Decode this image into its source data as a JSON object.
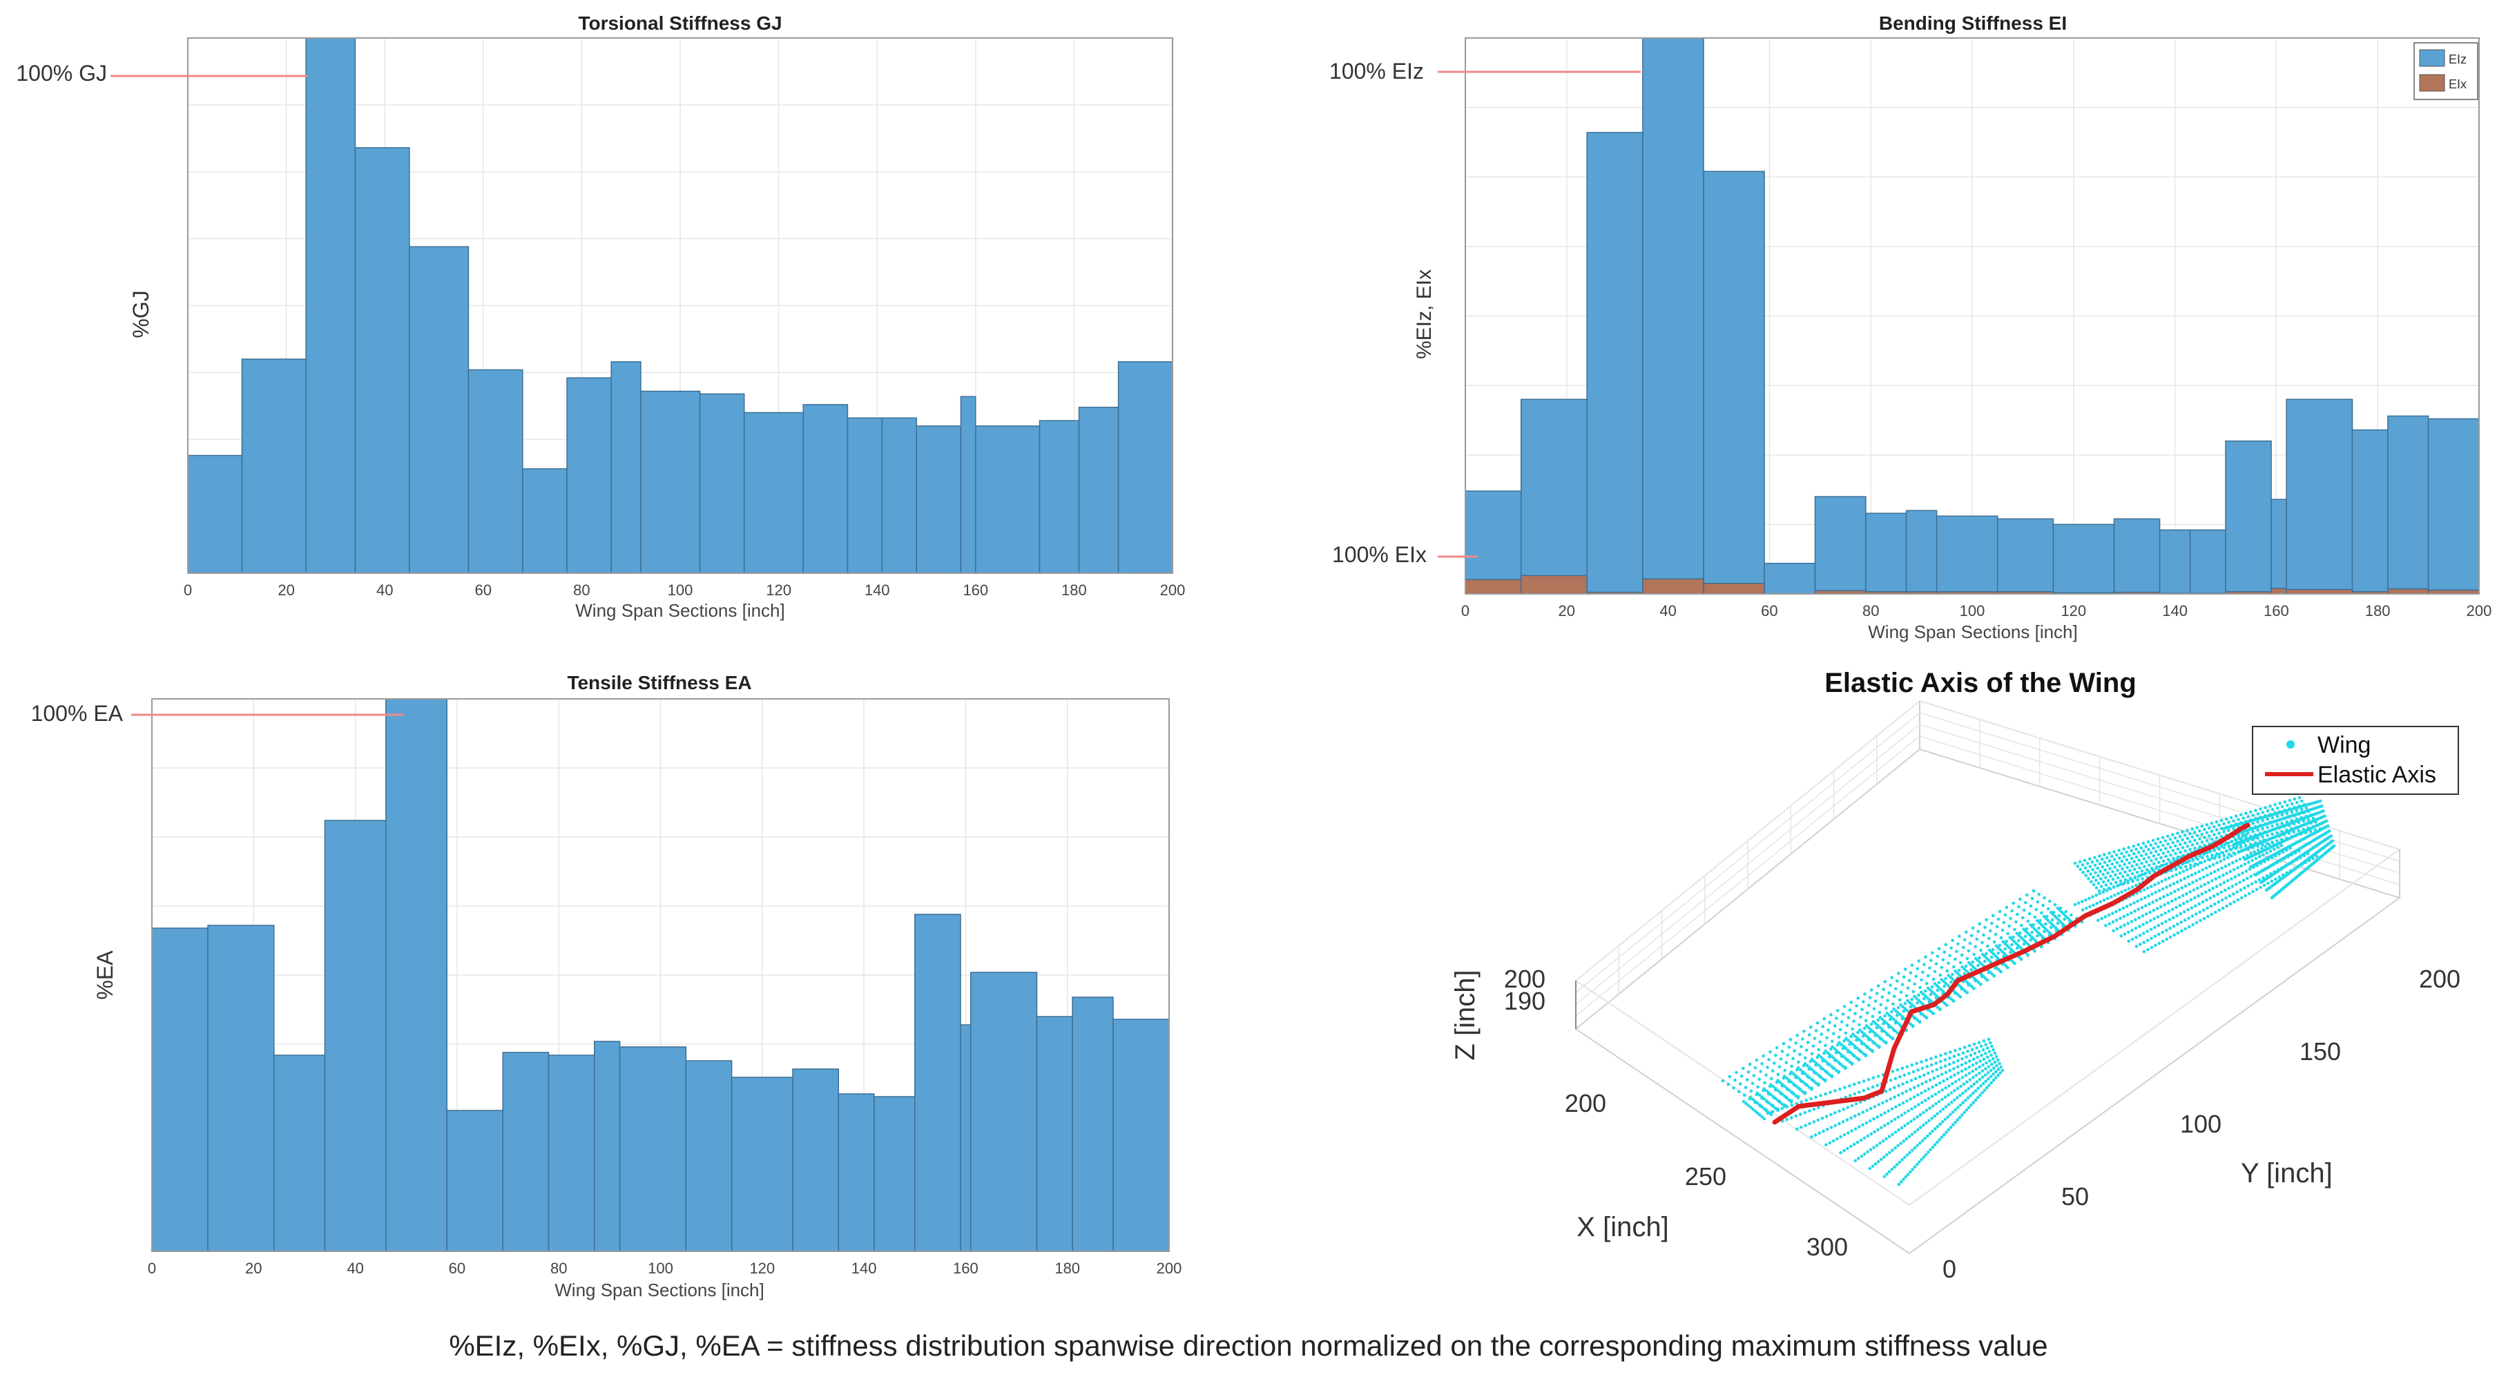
{
  "chart_data": [
    {
      "type": "bar",
      "title": "Torsional Stiffness GJ",
      "xlabel": "Wing Span Sections [inch]",
      "ylabel": "%GJ",
      "ref_label": "100% GJ",
      "xlim": [
        0,
        200
      ],
      "xticks": [
        "0",
        "20",
        "40",
        "60",
        "80",
        "100",
        "120",
        "140",
        "160",
        "180",
        "200"
      ],
      "ylim": [
        0,
        100
      ],
      "grid": true,
      "bins": [
        {
          "x0": 0,
          "x1": 11,
          "v": 22
        },
        {
          "x0": 11,
          "x1": 24,
          "v": 40
        },
        {
          "x0": 24,
          "x1": 34,
          "v": 100
        },
        {
          "x0": 34,
          "x1": 45,
          "v": 79.5
        },
        {
          "x0": 45,
          "x1": 57,
          "v": 61
        },
        {
          "x0": 57,
          "x1": 68,
          "v": 38
        },
        {
          "x0": 68,
          "x1": 77,
          "v": 19.5
        },
        {
          "x0": 77,
          "x1": 86,
          "v": 36.5
        },
        {
          "x0": 86,
          "x1": 92,
          "v": 39.5
        },
        {
          "x0": 92,
          "x1": 104,
          "v": 34
        },
        {
          "x0": 104,
          "x1": 113,
          "v": 33.5
        },
        {
          "x0": 113,
          "x1": 125,
          "v": 30
        },
        {
          "x0": 125,
          "x1": 134,
          "v": 31.5
        },
        {
          "x0": 134,
          "x1": 141,
          "v": 29
        },
        {
          "x0": 141,
          "x1": 148,
          "v": 29
        },
        {
          "x0": 148,
          "x1": 157,
          "v": 27.5
        },
        {
          "x0": 157,
          "x1": 160,
          "v": 33
        },
        {
          "x0": 160,
          "x1": 173,
          "v": 27.5
        },
        {
          "x0": 173,
          "x1": 181,
          "v": 28.5
        },
        {
          "x0": 181,
          "x1": 189,
          "v": 31
        },
        {
          "x0": 189,
          "x1": 200,
          "v": 39.5
        }
      ],
      "bar_color": "#5aa2d4"
    },
    {
      "type": "bar",
      "title": "Bending Stiffness EI",
      "xlabel": "Wing Span Sections [inch]",
      "ylabel": "%EIz, EIx",
      "ref_label_top": "100% EIz",
      "ref_label_bottom": "100% EIx",
      "xlim": [
        0,
        200
      ],
      "xticks": [
        "0",
        "20",
        "40",
        "60",
        "80",
        "100",
        "120",
        "140",
        "160",
        "180",
        "200"
      ],
      "ylim": [
        0,
        100
      ],
      "grid": true,
      "legend": [
        "EIz",
        "EIx"
      ],
      "legend_position": "top-right",
      "series": [
        {
          "name": "EIz",
          "color": "#5aa2d4",
          "bins": [
            {
              "x0": 0,
              "x1": 11,
              "v": 18.5
            },
            {
              "x0": 11,
              "x1": 24,
              "v": 35
            },
            {
              "x0": 24,
              "x1": 35,
              "v": 83
            },
            {
              "x0": 35,
              "x1": 47,
              "v": 100
            },
            {
              "x0": 47,
              "x1": 59,
              "v": 76
            },
            {
              "x0": 59,
              "x1": 69,
              "v": 5.5
            },
            {
              "x0": 69,
              "x1": 79,
              "v": 17.5
            },
            {
              "x0": 79,
              "x1": 87,
              "v": 14.5
            },
            {
              "x0": 87,
              "x1": 93,
              "v": 15
            },
            {
              "x0": 93,
              "x1": 105,
              "v": 14
            },
            {
              "x0": 105,
              "x1": 116,
              "v": 13.5
            },
            {
              "x0": 116,
              "x1": 128,
              "v": 12.5
            },
            {
              "x0": 128,
              "x1": 137,
              "v": 13.5
            },
            {
              "x0": 137,
              "x1": 143,
              "v": 11.5
            },
            {
              "x0": 143,
              "x1": 150,
              "v": 11.5
            },
            {
              "x0": 150,
              "x1": 159,
              "v": 27.5
            },
            {
              "x0": 159,
              "x1": 162,
              "v": 17
            },
            {
              "x0": 162,
              "x1": 175,
              "v": 35
            },
            {
              "x0": 175,
              "x1": 182,
              "v": 29.5
            },
            {
              "x0": 182,
              "x1": 190,
              "v": 32
            },
            {
              "x0": 190,
              "x1": 200,
              "v": 31.5
            }
          ]
        },
        {
          "name": "EIx",
          "color": "#b2745a",
          "bins": [
            {
              "x0": 0,
              "x1": 11,
              "v": 2.6
            },
            {
              "x0": 11,
              "x1": 24,
              "v": 3.3
            },
            {
              "x0": 24,
              "x1": 35,
              "v": 0.3
            },
            {
              "x0": 35,
              "x1": 47,
              "v": 2.7
            },
            {
              "x0": 47,
              "x1": 59,
              "v": 1.9
            },
            {
              "x0": 59,
              "x1": 69,
              "v": 0
            },
            {
              "x0": 69,
              "x1": 79,
              "v": 0.6
            },
            {
              "x0": 79,
              "x1": 87,
              "v": 0.4
            },
            {
              "x0": 87,
              "x1": 93,
              "v": 0.4
            },
            {
              "x0": 93,
              "x1": 105,
              "v": 0.4
            },
            {
              "x0": 105,
              "x1": 116,
              "v": 0.4
            },
            {
              "x0": 116,
              "x1": 128,
              "v": 0.2
            },
            {
              "x0": 128,
              "x1": 137,
              "v": 0.3
            },
            {
              "x0": 137,
              "x1": 143,
              "v": 0.1
            },
            {
              "x0": 143,
              "x1": 150,
              "v": 0.1
            },
            {
              "x0": 150,
              "x1": 159,
              "v": 0.4
            },
            {
              "x0": 159,
              "x1": 162,
              "v": 1
            },
            {
              "x0": 162,
              "x1": 175,
              "v": 0.8
            },
            {
              "x0": 175,
              "x1": 182,
              "v": 0.4
            },
            {
              "x0": 182,
              "x1": 190,
              "v": 0.9
            },
            {
              "x0": 190,
              "x1": 200,
              "v": 0.7
            }
          ]
        }
      ]
    },
    {
      "type": "bar",
      "title": "Tensile Stiffness EA",
      "xlabel": "Wing Span Sections [inch]",
      "ylabel": "%EA",
      "ref_label": "100% EA",
      "xlim": [
        0,
        200
      ],
      "xticks": [
        "0",
        "20",
        "40",
        "60",
        "80",
        "100",
        "120",
        "140",
        "160",
        "180",
        "200"
      ],
      "ylim": [
        0,
        100
      ],
      "grid": true,
      "bins": [
        {
          "x0": 0,
          "x1": 11,
          "v": 58.5
        },
        {
          "x0": 11,
          "x1": 24,
          "v": 59
        },
        {
          "x0": 24,
          "x1": 34,
          "v": 35.5
        },
        {
          "x0": 34,
          "x1": 46,
          "v": 78
        },
        {
          "x0": 46,
          "x1": 58,
          "v": 100
        },
        {
          "x0": 58,
          "x1": 69,
          "v": 25.5
        },
        {
          "x0": 69,
          "x1": 78,
          "v": 36
        },
        {
          "x0": 78,
          "x1": 87,
          "v": 35.5
        },
        {
          "x0": 87,
          "x1": 92,
          "v": 38
        },
        {
          "x0": 92,
          "x1": 105,
          "v": 37
        },
        {
          "x0": 105,
          "x1": 114,
          "v": 34.5
        },
        {
          "x0": 114,
          "x1": 126,
          "v": 31.5
        },
        {
          "x0": 126,
          "x1": 135,
          "v": 33
        },
        {
          "x0": 135,
          "x1": 142,
          "v": 28.5
        },
        {
          "x0": 142,
          "x1": 150,
          "v": 28
        },
        {
          "x0": 150,
          "x1": 159,
          "v": 61
        },
        {
          "x0": 159,
          "x1": 161,
          "v": 41
        },
        {
          "x0": 161,
          "x1": 174,
          "v": 50.5
        },
        {
          "x0": 174,
          "x1": 181,
          "v": 42.5
        },
        {
          "x0": 181,
          "x1": 189,
          "v": 46
        },
        {
          "x0": 189,
          "x1": 200,
          "v": 42
        }
      ],
      "bar_color": "#5aa2d4"
    },
    {
      "type": "scatter",
      "title": "Elastic Axis of the Wing",
      "xlabel": "X [inch]",
      "ylabel": "Y [inch]",
      "zlabel": "Z [inch]",
      "x_ticks": [
        "200",
        "250",
        "300"
      ],
      "y_ticks": [
        "0",
        "50",
        "100",
        "150",
        "200"
      ],
      "z_ticks": [
        "190",
        "200"
      ],
      "legend": [
        "Wing",
        "Elastic Axis"
      ],
      "legend_position": "top-right",
      "series": [
        {
          "name": "Wing",
          "marker": "dot",
          "color": "#22d8e6"
        },
        {
          "name": "Elastic Axis",
          "line": "solid",
          "color": "#dd1f1f"
        }
      ]
    }
  ],
  "caption": "%EIz, %EIx, %GJ, %EA = stiffness distribution spanwise direction normalized on the corresponding maximum stiffness value"
}
